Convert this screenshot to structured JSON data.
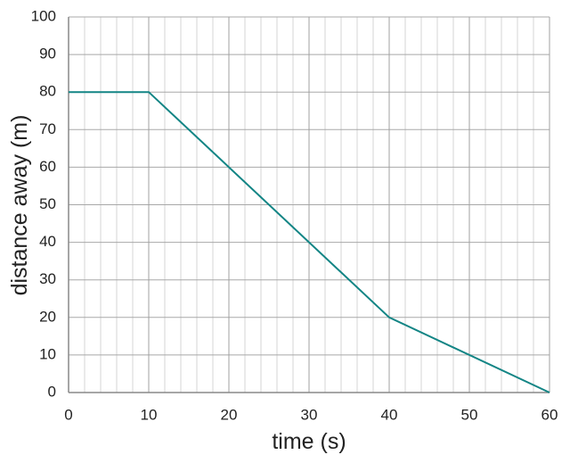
{
  "chart_data": {
    "type": "line",
    "x_label": "time (s)",
    "y_label": "distance away (m)",
    "x": [
      0,
      10,
      40,
      60
    ],
    "values": [
      80,
      80,
      20,
      0
    ],
    "color": "#138585",
    "xlim": [
      0,
      60
    ],
    "xticks": [
      0,
      10,
      20,
      30,
      40,
      50,
      60
    ],
    "ylim": [
      0,
      100
    ],
    "yticks": [
      0,
      10,
      20,
      30,
      40,
      50,
      60,
      70,
      80,
      90,
      100
    ],
    "grid": true
  }
}
